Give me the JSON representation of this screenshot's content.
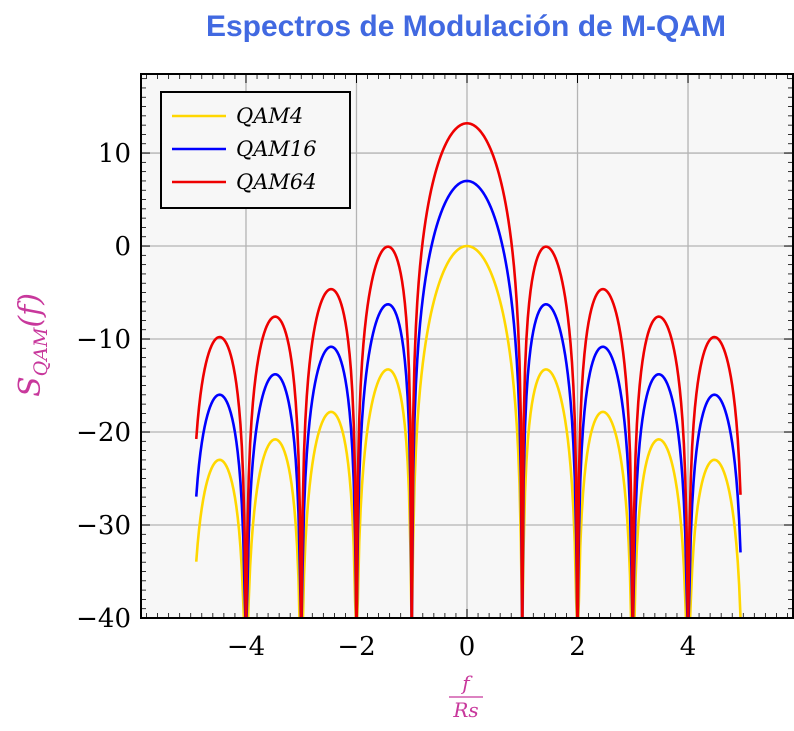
{
  "chart_data": {
    "type": "line",
    "title": "Espectros de Modulación de M-QAM",
    "xlabel_num": "f",
    "xlabel_den": "Rs",
    "ylabel_main": "S",
    "ylabel_sub": "QAM",
    "ylabel_arg": "(f)",
    "xlim": [
      -5.9,
      5.9
    ],
    "ylim": [
      -40,
      18.5
    ],
    "xticks": [
      -4,
      -2,
      0,
      2,
      4
    ],
    "xtick_labels": [
      "−4",
      "−2",
      "0",
      "2",
      "4"
    ],
    "yticks": [
      10,
      0,
      -10,
      -20,
      -30,
      -40
    ],
    "ytick_labels": [
      "10",
      "0",
      "−10",
      "−20",
      "−30",
      "−40"
    ],
    "x_minor_step": 0.2,
    "y_minor_step": 1,
    "grid": true,
    "legend_position": "top-left",
    "model": "S(f) = 10·log10(sinc²(f)) + peak_db",
    "x_range": [
      -4.9,
      4.97
    ],
    "series": [
      {
        "name": "QAM4",
        "peak_db": 0,
        "sidelobe_peaks_db": [
          -13.3,
          -17.9,
          -20.8,
          -23.0
        ],
        "color": "#ffd700"
      },
      {
        "name": "QAM16",
        "peak_db": 7.0,
        "sidelobe_peaks_db": [
          -6.3,
          -10.9,
          -13.8,
          -16.0
        ],
        "color": "#0000ff"
      },
      {
        "name": "QAM64",
        "peak_db": 13.2,
        "sidelobe_peaks_db": [
          -0.1,
          -4.7,
          -7.6,
          -9.8
        ],
        "color": "#ee0000"
      }
    ],
    "colors": {
      "title": "#4169e1",
      "axis_label": "#c8389c",
      "plot_background": "#f7f7f7",
      "grid": "#b4b4b4"
    }
  }
}
